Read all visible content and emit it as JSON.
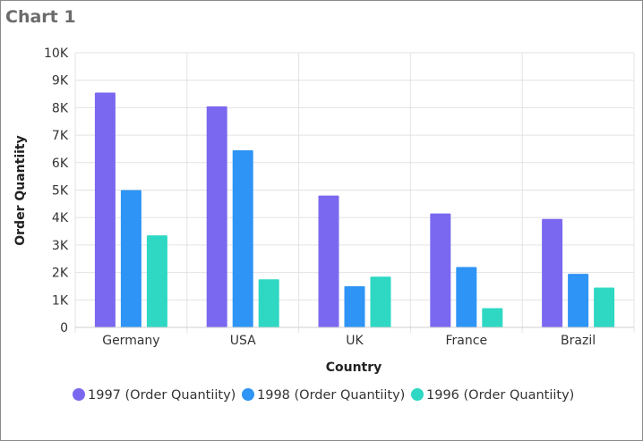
{
  "widget": {
    "title": "Chart 1"
  },
  "chart_data": {
    "type": "bar",
    "title": "",
    "xlabel": "Country",
    "ylabel": "Order Quantiity",
    "categories": [
      "Germany",
      "USA",
      "UK",
      "France",
      "Brazil"
    ],
    "series": [
      {
        "name": "1997 (Order Quantiity)",
        "color": "#7b68f0",
        "values": [
          8550,
          8050,
          4800,
          4150,
          3950
        ]
      },
      {
        "name": "1998 (Order Quantiity)",
        "color": "#2e94f5",
        "values": [
          5000,
          6450,
          1500,
          2200,
          1950
        ]
      },
      {
        "name": "1996 (Order Quantiity)",
        "color": "#2ed8c3",
        "values": [
          3350,
          1750,
          1850,
          700,
          1450
        ]
      }
    ],
    "ylim": [
      0,
      10000
    ],
    "yticks": [
      0,
      1000,
      2000,
      3000,
      4000,
      5000,
      6000,
      7000,
      8000,
      9000,
      10000
    ],
    "ytick_labels": [
      "0",
      "1K",
      "2K",
      "3K",
      "4K",
      "5K",
      "6K",
      "7K",
      "8K",
      "9K",
      "10K"
    ],
    "grid": true,
    "legend_position": "bottom"
  }
}
